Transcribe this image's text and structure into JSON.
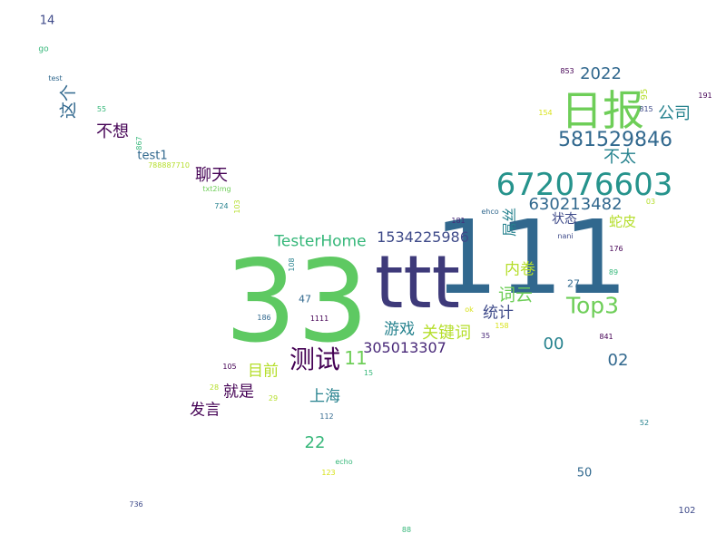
{
  "palette": {
    "purple": "#482878",
    "navy": "#3e4a89",
    "blue": "#31688e",
    "teal": "#26828e",
    "green": "#35b779",
    "lime": "#6ece58",
    "yellow": "#b5de2b",
    "gold": "#d8e219",
    "dark": "#440154"
  },
  "words": [
    {
      "text": "33"
    },
    {
      "text": "111"
    },
    {
      "text": "ttt"
    },
    {
      "text": "672076603"
    },
    {
      "text": "日报"
    },
    {
      "text": "581529846"
    },
    {
      "text": "Top3"
    },
    {
      "text": "测试"
    },
    {
      "text": "630213482"
    },
    {
      "text": "TesterHome"
    },
    {
      "text": "1534225986"
    },
    {
      "text": "305013307"
    },
    {
      "text": "2022"
    },
    {
      "text": "公司"
    },
    {
      "text": "不太"
    },
    {
      "text": "聊天"
    },
    {
      "text": "不想"
    },
    {
      "text": "这个"
    },
    {
      "text": "词云"
    },
    {
      "text": "内卷"
    },
    {
      "text": "统计"
    },
    {
      "text": "关键词"
    },
    {
      "text": "游戏"
    },
    {
      "text": "11"
    },
    {
      "text": "00"
    },
    {
      "text": "02"
    },
    {
      "text": "目前"
    },
    {
      "text": "上海"
    },
    {
      "text": "就是"
    },
    {
      "text": "发言"
    },
    {
      "text": "22"
    },
    {
      "text": "屌丝"
    },
    {
      "text": "蛇皮"
    },
    {
      "text": "状态"
    },
    {
      "text": "test1"
    },
    {
      "text": "50"
    },
    {
      "text": "14"
    },
    {
      "text": "27"
    },
    {
      "text": "47"
    },
    {
      "text": "95"
    },
    {
      "text": "go"
    },
    {
      "text": "test"
    },
    {
      "text": "55"
    },
    {
      "text": "867"
    },
    {
      "text": "788887710"
    },
    {
      "text": "txt2img"
    },
    {
      "text": "724"
    },
    {
      "text": "103"
    },
    {
      "text": "853"
    },
    {
      "text": "154"
    },
    {
      "text": "815"
    },
    {
      "text": "191"
    },
    {
      "text": "03"
    },
    {
      "text": "ehco"
    },
    {
      "text": "181"
    },
    {
      "text": "nani"
    },
    {
      "text": "176"
    },
    {
      "text": "89"
    },
    {
      "text": "108"
    },
    {
      "text": "186"
    },
    {
      "text": "1111"
    },
    {
      "text": "ok"
    },
    {
      "text": "35"
    },
    {
      "text": "158"
    },
    {
      "text": "841"
    },
    {
      "text": "105"
    },
    {
      "text": "15"
    },
    {
      "text": "28"
    },
    {
      "text": "29"
    },
    {
      "text": "112"
    },
    {
      "text": "52"
    },
    {
      "text": "echo"
    },
    {
      "text": "123"
    },
    {
      "text": "736"
    },
    {
      "text": "102"
    },
    {
      "text": "88"
    }
  ]
}
